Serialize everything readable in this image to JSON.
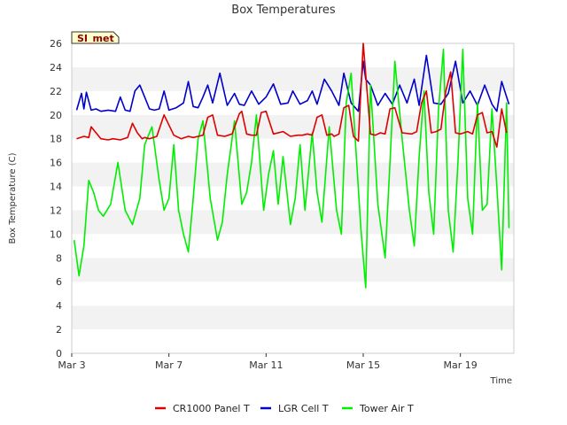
{
  "chart_data": {
    "type": "line",
    "title": "Box Temperatures",
    "xlabel": "Time",
    "ylabel": "Box Temperature (C)",
    "site_tag": "SI_met",
    "ylim": [
      0,
      26
    ],
    "yticks": [
      0,
      2,
      4,
      6,
      8,
      10,
      12,
      14,
      16,
      18,
      20,
      22,
      24,
      26
    ],
    "xlim": [
      0,
      18.2
    ],
    "xtick_values": [
      0,
      4,
      8,
      12,
      16
    ],
    "xtick_labels": [
      "Mar 3",
      "Mar 7",
      "Mar 11",
      "Mar 15",
      "Mar 19"
    ],
    "x_unit": "days since Mar 3",
    "grid": "horizontal alternating bands",
    "legend_position": "bottom",
    "series": [
      {
        "name": "CR1000 Panel T",
        "color": "#dd0000",
        "x": [
          0.2,
          0.5,
          0.7,
          0.8,
          1.0,
          1.2,
          1.5,
          1.7,
          2.0,
          2.3,
          2.5,
          2.7,
          2.9,
          3.0,
          3.2,
          3.5,
          3.8,
          4.2,
          4.5,
          4.8,
          5.0,
          5.2,
          5.4,
          5.6,
          5.8,
          6.0,
          6.3,
          6.6,
          6.9,
          7.0,
          7.2,
          7.4,
          7.6,
          7.8,
          8.0,
          8.3,
          8.7,
          9.0,
          9.3,
          9.5,
          9.7,
          9.9,
          10.1,
          10.3,
          10.5,
          10.7,
          10.8,
          10.9,
          11.0,
          11.2,
          11.4,
          11.6,
          11.8,
          12.0,
          12.3,
          12.5,
          12.7,
          12.9,
          13.1,
          13.3,
          13.6,
          14.0,
          14.2,
          14.4,
          14.6,
          14.8,
          15.0,
          15.2,
          15.4,
          15.6,
          15.8,
          16.0,
          16.3,
          16.5,
          16.7,
          16.9,
          17.1,
          17.3,
          17.5,
          17.7,
          17.9
        ],
        "y": [
          18.0,
          18.2,
          18.1,
          19.0,
          18.5,
          18.0,
          17.9,
          18.0,
          17.9,
          18.1,
          19.3,
          18.5,
          18.0,
          18.1,
          18.0,
          18.2,
          20.0,
          18.3,
          18.0,
          18.2,
          18.1,
          18.2,
          18.3,
          19.8,
          20.0,
          18.3,
          18.2,
          18.4,
          20.1,
          20.3,
          18.4,
          18.3,
          18.3,
          20.2,
          20.3,
          18.4,
          18.6,
          18.2,
          18.3,
          18.3,
          18.4,
          18.3,
          19.8,
          20.0,
          18.3,
          18.4,
          18.2,
          18.3,
          18.4,
          20.6,
          20.8,
          18.2,
          17.8,
          26.0,
          18.4,
          18.3,
          18.5,
          18.4,
          20.5,
          20.6,
          18.5,
          18.4,
          18.6,
          21.0,
          22.0,
          18.5,
          18.6,
          18.8,
          22.0,
          23.6,
          18.5,
          18.4,
          18.6,
          18.4,
          20.0,
          20.2,
          18.5,
          18.6,
          17.3,
          20.5,
          18.5
        ]
      },
      {
        "name": "LGR Cell T",
        "color": "#0000cc",
        "x": [
          0.2,
          0.4,
          0.5,
          0.6,
          0.8,
          1.0,
          1.2,
          1.5,
          1.8,
          2.0,
          2.2,
          2.4,
          2.6,
          2.8,
          3.0,
          3.2,
          3.4,
          3.6,
          3.8,
          4.0,
          4.3,
          4.6,
          4.8,
          5.0,
          5.2,
          5.4,
          5.6,
          5.8,
          6.1,
          6.4,
          6.7,
          6.9,
          7.1,
          7.4,
          7.7,
          8.0,
          8.3,
          8.6,
          8.9,
          9.1,
          9.4,
          9.7,
          9.9,
          10.1,
          10.4,
          10.7,
          11.0,
          11.2,
          11.5,
          11.8,
          12.0,
          12.1,
          12.3,
          12.6,
          12.9,
          13.2,
          13.5,
          13.8,
          14.1,
          14.3,
          14.6,
          14.9,
          15.2,
          15.5,
          15.8,
          16.1,
          16.4,
          16.7,
          17.0,
          17.3,
          17.5,
          17.7,
          18.0
        ],
        "y": [
          20.4,
          21.8,
          20.5,
          21.9,
          20.4,
          20.5,
          20.3,
          20.4,
          20.3,
          21.5,
          20.4,
          20.3,
          22.0,
          22.5,
          21.5,
          20.5,
          20.4,
          20.5,
          22.0,
          20.4,
          20.6,
          21.0,
          22.8,
          20.7,
          20.6,
          21.5,
          22.5,
          21.0,
          23.5,
          20.8,
          21.8,
          20.9,
          20.8,
          22.0,
          20.9,
          21.5,
          22.6,
          20.9,
          21.0,
          22.0,
          20.9,
          21.2,
          22.0,
          20.9,
          23.0,
          22.0,
          20.8,
          23.5,
          21.0,
          20.3,
          24.5,
          23.0,
          22.5,
          20.8,
          21.8,
          20.9,
          22.5,
          21.0,
          23.0,
          20.8,
          25.0,
          21.0,
          20.9,
          21.8,
          24.5,
          21.0,
          22.0,
          20.8,
          22.5,
          20.9,
          20.3,
          22.8,
          20.9
        ]
      },
      {
        "name": "Tower Air T",
        "color": "#00ee00",
        "x": [
          0.1,
          0.3,
          0.5,
          0.7,
          0.9,
          1.1,
          1.3,
          1.6,
          1.9,
          2.2,
          2.5,
          2.8,
          3.0,
          3.3,
          3.6,
          3.8,
          4.0,
          4.2,
          4.4,
          4.6,
          4.8,
          5.0,
          5.2,
          5.4,
          5.7,
          6.0,
          6.2,
          6.4,
          6.7,
          7.0,
          7.2,
          7.4,
          7.6,
          7.9,
          8.1,
          8.3,
          8.5,
          8.7,
          9.0,
          9.2,
          9.4,
          9.6,
          9.9,
          10.1,
          10.3,
          10.6,
          10.9,
          11.1,
          11.3,
          11.5,
          11.7,
          11.9,
          12.1,
          12.3,
          12.6,
          12.9,
          13.1,
          13.3,
          13.6,
          13.9,
          14.1,
          14.3,
          14.5,
          14.7,
          14.9,
          15.1,
          15.3,
          15.5,
          15.7,
          15.9,
          16.1,
          16.3,
          16.5,
          16.7,
          16.9,
          17.1,
          17.3,
          17.5,
          17.7,
          17.9,
          18.0
        ],
        "y": [
          9.5,
          6.5,
          9.0,
          14.5,
          13.5,
          12.0,
          11.5,
          12.5,
          16.0,
          12.0,
          10.8,
          13.0,
          17.5,
          19.0,
          14.5,
          12.0,
          13.0,
          17.5,
          12.0,
          10.0,
          8.5,
          13.0,
          18.0,
          19.5,
          13.0,
          9.5,
          11.0,
          15.0,
          19.5,
          12.5,
          13.5,
          16.0,
          20.0,
          12.0,
          15.0,
          17.0,
          12.5,
          16.5,
          10.8,
          13.0,
          17.5,
          12.0,
          18.5,
          13.5,
          11.0,
          19.0,
          12.0,
          10.0,
          21.0,
          23.5,
          17.0,
          10.5,
          5.5,
          22.5,
          12.5,
          8.0,
          16.0,
          24.5,
          18.0,
          12.0,
          9.0,
          16.5,
          22.0,
          13.5,
          10.0,
          20.5,
          25.5,
          12.0,
          8.5,
          16.0,
          25.5,
          13.0,
          10.0,
          21.0,
          12.0,
          12.5,
          20.5,
          14.0,
          7.0,
          21.0,
          10.5
        ]
      }
    ]
  }
}
